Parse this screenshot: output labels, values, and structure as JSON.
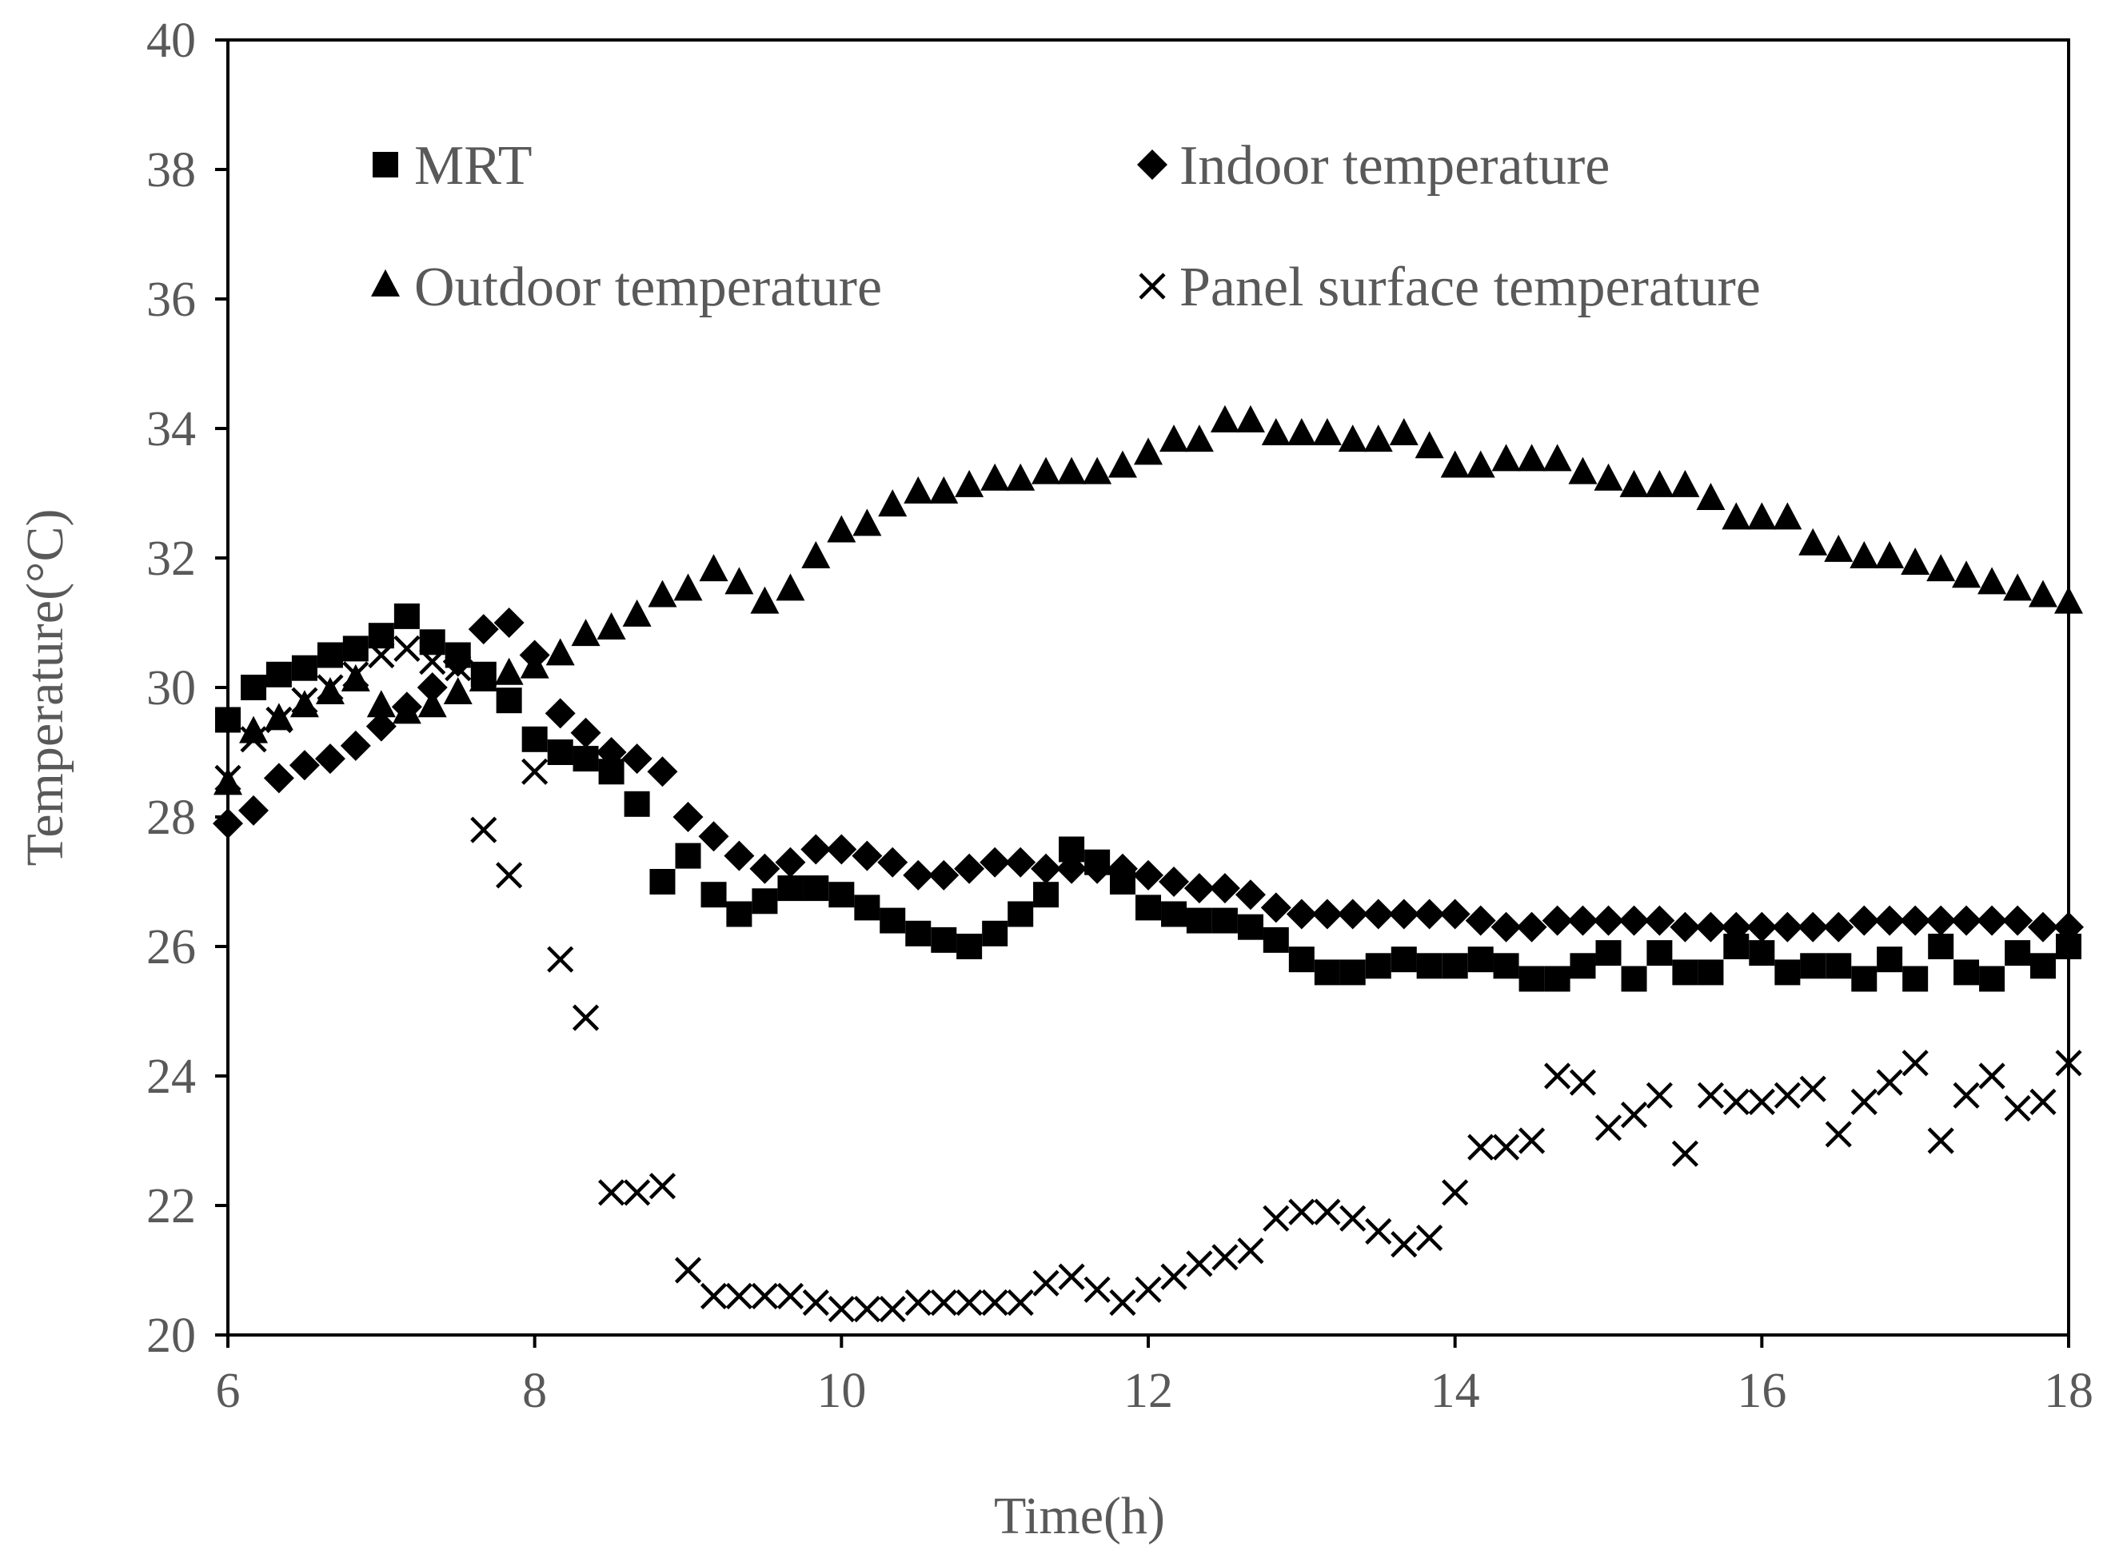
{
  "chart_data": {
    "type": "scatter",
    "title": "",
    "xlabel": "Time(h)",
    "ylabel": "Temperature(°C)",
    "xlim": [
      6,
      18
    ],
    "ylim": [
      20,
      40
    ],
    "xticks": [
      "6",
      "8",
      "10",
      "12",
      "14",
      "16",
      "18"
    ],
    "yticks": [
      "20",
      "22",
      "24",
      "26",
      "28",
      "30",
      "32",
      "34",
      "36",
      "38",
      "40"
    ],
    "grid": false,
    "legend": {
      "position": "top",
      "columns": 2
    },
    "series": [
      {
        "name": "MRT",
        "marker": "square",
        "x": [
          6.0,
          6.167,
          6.333,
          6.5,
          6.667,
          6.833,
          7.0,
          7.167,
          7.333,
          7.5,
          7.667,
          7.833,
          8.0,
          8.167,
          8.333,
          8.5,
          8.667,
          8.833,
          9.0,
          9.167,
          9.333,
          9.5,
          9.667,
          9.833,
          10.0,
          10.167,
          10.333,
          10.5,
          10.667,
          10.833,
          11.0,
          11.167,
          11.333,
          11.5,
          11.667,
          11.833,
          12.0,
          12.167,
          12.333,
          12.5,
          12.667,
          12.833,
          13.0,
          13.167,
          13.333,
          13.5,
          13.667,
          13.833,
          14.0,
          14.167,
          14.333,
          14.5,
          14.667,
          14.833,
          15.0,
          15.167,
          15.333,
          15.5,
          15.667,
          15.833,
          16.0,
          16.167,
          16.333,
          16.5,
          16.667,
          16.833,
          17.0,
          17.167,
          17.333,
          17.5,
          17.667,
          17.833,
          18.0
        ],
        "values": [
          29.5,
          30.0,
          30.2,
          30.3,
          30.5,
          30.6,
          30.8,
          31.1,
          30.7,
          30.5,
          30.2,
          29.8,
          29.2,
          29.0,
          28.9,
          28.7,
          28.2,
          27.0,
          27.4,
          26.8,
          26.5,
          26.7,
          26.9,
          26.9,
          26.8,
          26.6,
          26.4,
          26.2,
          26.1,
          26.0,
          26.2,
          26.5,
          26.8,
          27.5,
          27.3,
          27.0,
          26.6,
          26.5,
          26.4,
          26.4,
          26.3,
          26.1,
          25.8,
          25.6,
          25.6,
          25.7,
          25.8,
          25.7,
          25.7,
          25.8,
          25.7,
          25.5,
          25.5,
          25.7,
          25.9,
          25.5,
          25.9,
          25.6,
          25.6,
          26.0,
          25.9,
          25.6,
          25.7,
          25.7,
          25.5,
          25.8,
          25.5,
          26.0,
          25.6,
          25.5,
          25.9,
          25.7,
          26.0
        ]
      },
      {
        "name": "Indoor temperature",
        "marker": "diamond",
        "x": [
          6.0,
          6.167,
          6.333,
          6.5,
          6.667,
          6.833,
          7.0,
          7.167,
          7.333,
          7.5,
          7.667,
          7.833,
          8.0,
          8.167,
          8.333,
          8.5,
          8.667,
          8.833,
          9.0,
          9.167,
          9.333,
          9.5,
          9.667,
          9.833,
          10.0,
          10.167,
          10.333,
          10.5,
          10.667,
          10.833,
          11.0,
          11.167,
          11.333,
          11.5,
          11.667,
          11.833,
          12.0,
          12.167,
          12.333,
          12.5,
          12.667,
          12.833,
          13.0,
          13.167,
          13.333,
          13.5,
          13.667,
          13.833,
          14.0,
          14.167,
          14.333,
          14.5,
          14.667,
          14.833,
          15.0,
          15.167,
          15.333,
          15.5,
          15.667,
          15.833,
          16.0,
          16.167,
          16.333,
          16.5,
          16.667,
          16.833,
          17.0,
          17.167,
          17.333,
          17.5,
          17.667,
          17.833,
          18.0
        ],
        "values": [
          27.9,
          28.1,
          28.6,
          28.8,
          28.9,
          29.1,
          29.4,
          29.7,
          30.0,
          30.4,
          30.9,
          31.0,
          30.5,
          29.6,
          29.3,
          29.0,
          28.9,
          28.7,
          28.0,
          27.7,
          27.4,
          27.2,
          27.3,
          27.5,
          27.5,
          27.4,
          27.3,
          27.1,
          27.1,
          27.2,
          27.3,
          27.3,
          27.2,
          27.2,
          27.2,
          27.2,
          27.1,
          27.0,
          26.9,
          26.9,
          26.8,
          26.6,
          26.5,
          26.5,
          26.5,
          26.5,
          26.5,
          26.5,
          26.5,
          26.4,
          26.3,
          26.3,
          26.4,
          26.4,
          26.4,
          26.4,
          26.4,
          26.3,
          26.3,
          26.3,
          26.3,
          26.3,
          26.3,
          26.3,
          26.4,
          26.4,
          26.4,
          26.4,
          26.4,
          26.4,
          26.4,
          26.3,
          26.3
        ]
      },
      {
        "name": "Outdoor temperature",
        "marker": "triangle",
        "x": [
          6.0,
          6.167,
          6.333,
          6.5,
          6.667,
          6.833,
          7.0,
          7.167,
          7.333,
          7.5,
          7.667,
          7.833,
          8.0,
          8.167,
          8.333,
          8.5,
          8.667,
          8.833,
          9.0,
          9.167,
          9.333,
          9.5,
          9.667,
          9.833,
          10.0,
          10.167,
          10.333,
          10.5,
          10.667,
          10.833,
          11.0,
          11.167,
          11.333,
          11.5,
          11.667,
          11.833,
          12.0,
          12.167,
          12.333,
          12.5,
          12.667,
          12.833,
          13.0,
          13.167,
          13.333,
          13.5,
          13.667,
          13.833,
          14.0,
          14.167,
          14.333,
          14.5,
          14.667,
          14.833,
          15.0,
          15.167,
          15.333,
          15.5,
          15.667,
          15.833,
          16.0,
          16.167,
          16.333,
          16.5,
          16.667,
          16.833,
          17.0,
          17.167,
          17.333,
          17.5,
          17.667,
          17.833,
          18.0
        ],
        "values": [
          28.5,
          29.3,
          29.5,
          29.7,
          29.9,
          30.1,
          29.7,
          29.6,
          29.7,
          29.9,
          30.1,
          30.2,
          30.3,
          30.5,
          30.8,
          30.9,
          31.1,
          31.4,
          31.5,
          31.8,
          31.6,
          31.3,
          31.5,
          32.0,
          32.4,
          32.5,
          32.8,
          33.0,
          33.0,
          33.1,
          33.2,
          33.2,
          33.3,
          33.3,
          33.3,
          33.4,
          33.6,
          33.8,
          33.8,
          34.1,
          34.1,
          33.9,
          33.9,
          33.9,
          33.8,
          33.8,
          33.9,
          33.7,
          33.4,
          33.4,
          33.5,
          33.5,
          33.5,
          33.3,
          33.2,
          33.1,
          33.1,
          33.1,
          32.9,
          32.6,
          32.6,
          32.6,
          32.2,
          32.1,
          32.0,
          32.0,
          31.9,
          31.8,
          31.7,
          31.6,
          31.5,
          31.4,
          31.3
        ]
      },
      {
        "name": "Panel surface temperature",
        "marker": "cross",
        "x": [
          6.0,
          6.167,
          6.333,
          6.5,
          6.667,
          6.833,
          7.0,
          7.167,
          7.333,
          7.5,
          7.667,
          7.833,
          8.0,
          8.167,
          8.333,
          8.5,
          8.667,
          8.833,
          9.0,
          9.167,
          9.333,
          9.5,
          9.667,
          9.833,
          10.0,
          10.167,
          10.333,
          10.5,
          10.667,
          10.833,
          11.0,
          11.167,
          11.333,
          11.5,
          11.667,
          11.833,
          12.0,
          12.167,
          12.333,
          12.5,
          12.667,
          12.833,
          13.0,
          13.167,
          13.333,
          13.5,
          13.667,
          13.833,
          14.0,
          14.167,
          14.333,
          14.5,
          14.667,
          14.833,
          15.0,
          15.167,
          15.333,
          15.5,
          15.667,
          15.833,
          16.0,
          16.167,
          16.333,
          16.5,
          16.667,
          16.833,
          17.0,
          17.167,
          17.333,
          17.5,
          17.667,
          17.833,
          18.0
        ],
        "values": [
          28.6,
          29.2,
          29.5,
          29.8,
          30.0,
          30.2,
          30.5,
          30.6,
          30.4,
          30.3,
          27.8,
          27.1,
          28.7,
          25.8,
          24.9,
          22.2,
          22.2,
          22.3,
          21.0,
          20.6,
          20.6,
          20.6,
          20.6,
          20.5,
          20.4,
          20.4,
          20.4,
          20.5,
          20.5,
          20.5,
          20.5,
          20.5,
          20.8,
          20.9,
          20.7,
          20.5,
          20.7,
          20.9,
          21.1,
          21.2,
          21.3,
          21.8,
          21.9,
          21.9,
          21.8,
          21.6,
          21.4,
          21.5,
          22.2,
          22.9,
          22.9,
          23.0,
          24.0,
          23.9,
          23.2,
          23.4,
          23.7,
          22.8,
          23.7,
          23.6,
          23.6,
          23.7,
          23.8,
          23.1,
          23.6,
          23.9,
          24.2,
          23.0,
          23.7,
          24.0,
          23.5,
          23.6,
          24.2
        ]
      }
    ]
  }
}
